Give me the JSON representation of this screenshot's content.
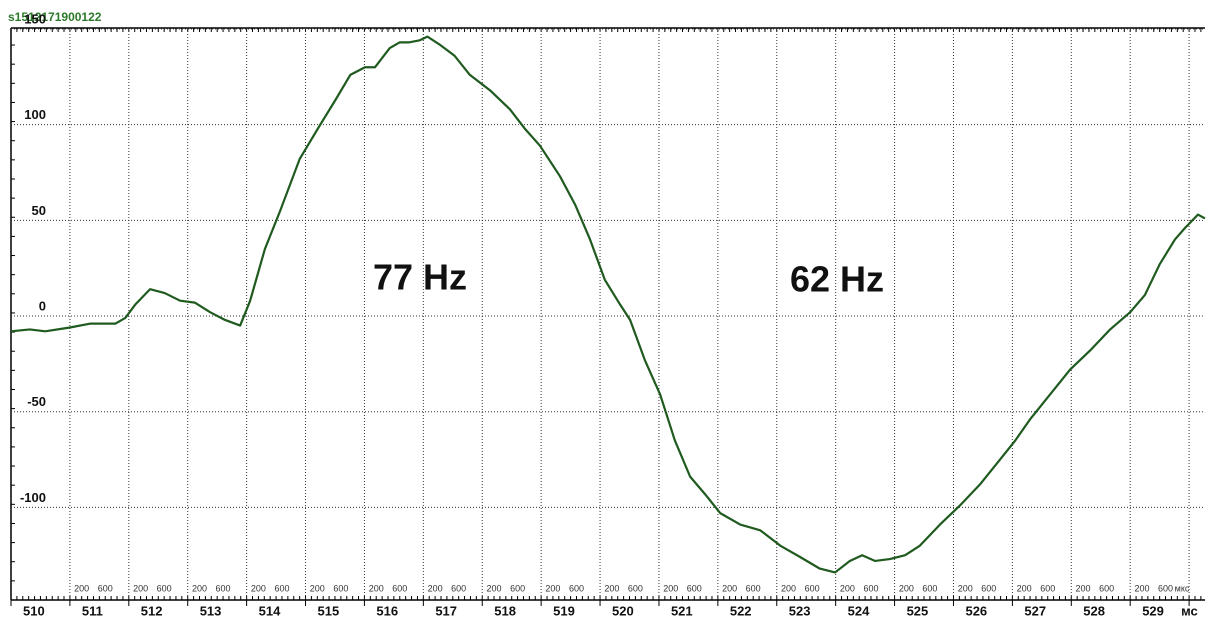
{
  "chart_data": {
    "type": "line",
    "title": "s1512171900122",
    "annotations": [
      "77 Hz",
      "62 Hz"
    ],
    "x": [
      510.0,
      510.32,
      510.58,
      511.0,
      511.34,
      511.77,
      511.94,
      512.11,
      512.36,
      512.61,
      512.87,
      513.12,
      513.38,
      513.63,
      513.89,
      514.06,
      514.31,
      514.57,
      514.9,
      515.25,
      515.51,
      515.76,
      516.01,
      516.18,
      516.43,
      516.6,
      516.76,
      516.93,
      517.07,
      517.27,
      517.53,
      517.79,
      518.13,
      518.47,
      518.72,
      518.98,
      519.32,
      519.58,
      519.83,
      520.08,
      520.34,
      520.51,
      520.76,
      521.02,
      521.27,
      521.53,
      521.78,
      522.04,
      522.38,
      522.72,
      523.06,
      523.4,
      523.73,
      523.99,
      524.24,
      524.45,
      524.67,
      524.92,
      525.18,
      525.43,
      525.77,
      526.11,
      526.45,
      526.79,
      527.05,
      527.3,
      527.64,
      527.98,
      528.32,
      528.66,
      529.0,
      529.25,
      529.5,
      529.76,
      529.93,
      530.15,
      530.27
    ],
    "series": [
      {
        "name": "s1512171900122",
        "color": "#1f5a1f",
        "values": [
          -8,
          -7,
          -8,
          -6,
          -4,
          -4,
          -1,
          6,
          14,
          12,
          8,
          7,
          2,
          -2,
          -5,
          8,
          35,
          55,
          82,
          100,
          113,
          126,
          130,
          130,
          140,
          143,
          143,
          144,
          146,
          142,
          136,
          126,
          118,
          108,
          98,
          89,
          73,
          58,
          40,
          19,
          6,
          -2,
          -23,
          -41,
          -65,
          -84,
          -93,
          -103,
          -109,
          -112,
          -120,
          -126,
          -132,
          -134,
          -128,
          -125,
          -128,
          -127,
          -125,
          -120,
          -109,
          -99,
          -88,
          -75,
          -65,
          -54,
          -41,
          -28,
          -18,
          -7,
          2,
          11,
          27,
          40,
          46,
          53,
          51
        ]
      }
    ],
    "xlim": [
      510,
      530.27
    ],
    "xticks": [
      510,
      511,
      512,
      513,
      514,
      515,
      516,
      517,
      518,
      519,
      520,
      521,
      522,
      523,
      524,
      525,
      526,
      527,
      528,
      529,
      {
        "value": 530,
        "label": "мс"
      }
    ],
    "sub_ticks": [
      200,
      600
    ],
    "sub_unit": "мкс",
    "ylim": [
      -148.4,
      150.5
    ],
    "yticks": [
      -100,
      -50,
      0,
      50,
      100,
      150
    ],
    "grid": true
  }
}
